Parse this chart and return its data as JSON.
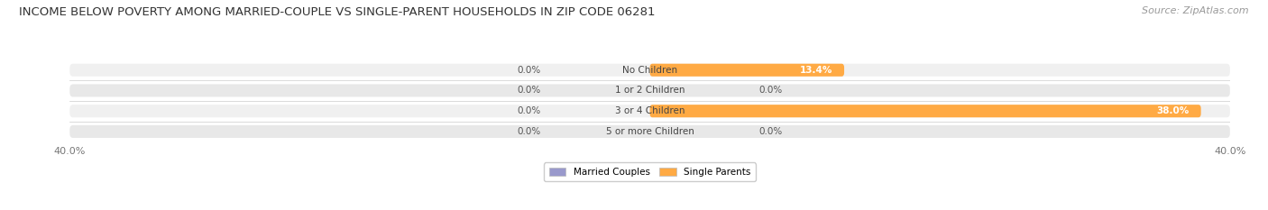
{
  "title": "INCOME BELOW POVERTY AMONG MARRIED-COUPLE VS SINGLE-PARENT HOUSEHOLDS IN ZIP CODE 06281",
  "source": "Source: ZipAtlas.com",
  "categories": [
    "No Children",
    "1 or 2 Children",
    "3 or 4 Children",
    "5 or more Children"
  ],
  "married_values": [
    0.0,
    0.0,
    0.0,
    0.0
  ],
  "single_values": [
    13.4,
    0.0,
    38.0,
    0.0
  ],
  "married_color": "#9999cc",
  "single_color": "#ffaa44",
  "xlim": 40.0,
  "bar_bg_color": "#e8e8e8",
  "bar_bg_color2": "#f0f0f0",
  "title_fontsize": 9.5,
  "label_fontsize": 7.5,
  "tick_fontsize": 8,
  "source_fontsize": 8,
  "value_label_color": "#555555",
  "cat_label_color": "#444444"
}
